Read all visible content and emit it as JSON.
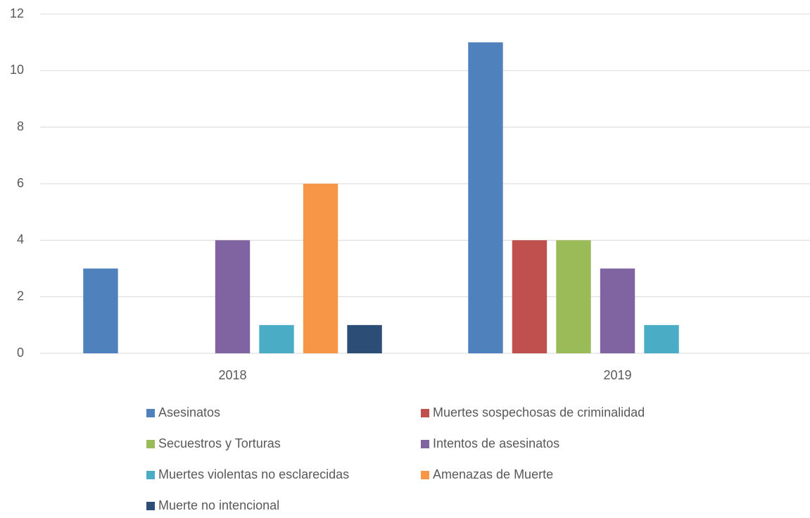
{
  "chart_data": {
    "type": "bar",
    "categories": [
      "2018",
      "2019"
    ],
    "series": [
      {
        "name": "Asesinatos",
        "color": "#4f81bd",
        "values": [
          3,
          11
        ]
      },
      {
        "name": "Muertes sospechosas de criminalidad",
        "color": "#c0504d",
        "values": [
          0,
          4
        ]
      },
      {
        "name": "Secuestros y Torturas",
        "color": "#9bbb59",
        "values": [
          0,
          4
        ]
      },
      {
        "name": "Intentos de asesinatos",
        "color": "#8064a2",
        "values": [
          4,
          3
        ]
      },
      {
        "name": "Muertes violentas no esclarecidas",
        "color": "#4bacc6",
        "values": [
          1,
          1
        ]
      },
      {
        "name": "Amenazas de Muerte",
        "color": "#f79646",
        "values": [
          6,
          0
        ]
      },
      {
        "name": "Muerte no intencional",
        "color": "#2c4d75",
        "values": [
          1,
          0
        ]
      }
    ],
    "ylim": [
      0,
      12
    ],
    "yticks": [
      0,
      2,
      4,
      6,
      8,
      10,
      12
    ],
    "grid": true,
    "legend": "bottom"
  }
}
